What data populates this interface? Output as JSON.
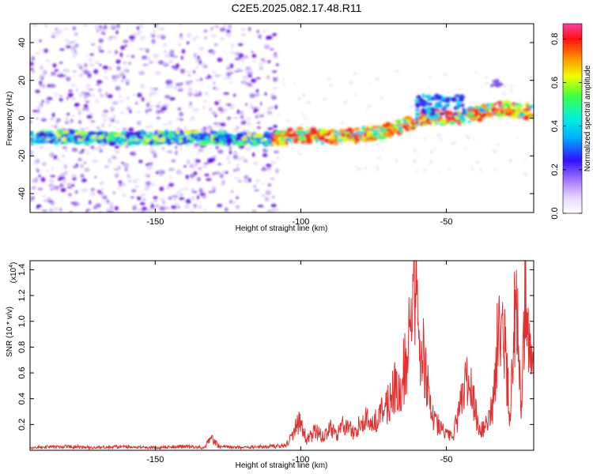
{
  "title": "C2E5.2025.082.17.48.R11",
  "chart_data": [
    {
      "type": "heatmap",
      "xlabel": "Height of straight line (km)",
      "ylabel": "Frequency (Hz)",
      "xlim": [
        -193,
        -20
      ],
      "ylim": [
        -50,
        50
      ],
      "x_ticks": [
        -150,
        -100,
        -50
      ],
      "y_ticks": [
        -40,
        -20,
        0,
        20,
        40
      ],
      "colorbar": {
        "label": "Normalized spectral amplitude",
        "range": [
          0,
          0.87
        ],
        "ticks": [
          0.0,
          0.2,
          0.4,
          0.6,
          0.8
        ]
      },
      "ridge": {
        "x": [
          -193,
          -180,
          -160,
          -140,
          -120,
          -110,
          -100,
          -90,
          -80,
          -75,
          -70,
          -65,
          -60,
          -55,
          -50,
          -45,
          -40,
          -35,
          -30,
          -25,
          -20
        ],
        "frequency": [
          -10,
          -10,
          -11,
          -10,
          -11,
          -11,
          -9,
          -10,
          -9,
          -8,
          -6,
          -4,
          -1,
          1,
          0,
          1,
          2,
          4,
          5,
          4,
          3
        ]
      },
      "noise_extent": [
        -193,
        -108
      ]
    },
    {
      "type": "line",
      "xlabel": "Height of straight line (km)",
      "ylabel": "SNR (10 * v/v)",
      "y_scale_label": "(x10",
      "y_scale_exponent": "4",
      "xlim": [
        -193,
        -20
      ],
      "ylim": [
        0,
        1.47
      ],
      "x_ticks": [
        -150,
        -100,
        -50
      ],
      "y_ticks": [
        0.2,
        0.4,
        0.6,
        0.8,
        1.0,
        1.2,
        1.4
      ],
      "series": [
        {
          "color": "#e03030",
          "x": [
            -193,
            -180,
            -170,
            -160,
            -150,
            -140,
            -133,
            -131,
            -128,
            -120,
            -110,
            -105,
            -101,
            -100,
            -98,
            -95,
            -92,
            -90,
            -88,
            -85,
            -82,
            -80,
            -78,
            -75,
            -72,
            -70,
            -68,
            -66,
            -64,
            -62,
            -61,
            -60,
            -59,
            -58,
            -57,
            -56,
            -55,
            -53,
            -51,
            -50,
            -48,
            -46,
            -44,
            -42,
            -40,
            -38,
            -36,
            -34,
            -33,
            -32,
            -31,
            -30,
            -29,
            -28,
            -27,
            -26,
            -25,
            -24,
            -23,
            -22,
            -21,
            -20
          ],
          "values": [
            0.02,
            0.03,
            0.02,
            0.03,
            0.02,
            0.03,
            0.02,
            0.1,
            0.03,
            0.02,
            0.03,
            0.04,
            0.2,
            0.25,
            0.08,
            0.15,
            0.1,
            0.18,
            0.12,
            0.2,
            0.15,
            0.2,
            0.25,
            0.2,
            0.3,
            0.35,
            0.5,
            0.45,
            0.7,
            0.95,
            1.35,
            1.3,
            0.9,
            0.75,
            0.6,
            0.4,
            0.3,
            0.2,
            0.15,
            0.12,
            0.1,
            0.25,
            0.45,
            0.55,
            0.3,
            0.15,
            0.2,
            0.35,
            0.7,
            0.95,
            1.0,
            0.85,
            0.5,
            0.2,
            0.9,
            1.1,
            0.7,
            0.3,
            1.47,
            0.9,
            0.65,
            0.55
          ]
        }
      ]
    }
  ]
}
